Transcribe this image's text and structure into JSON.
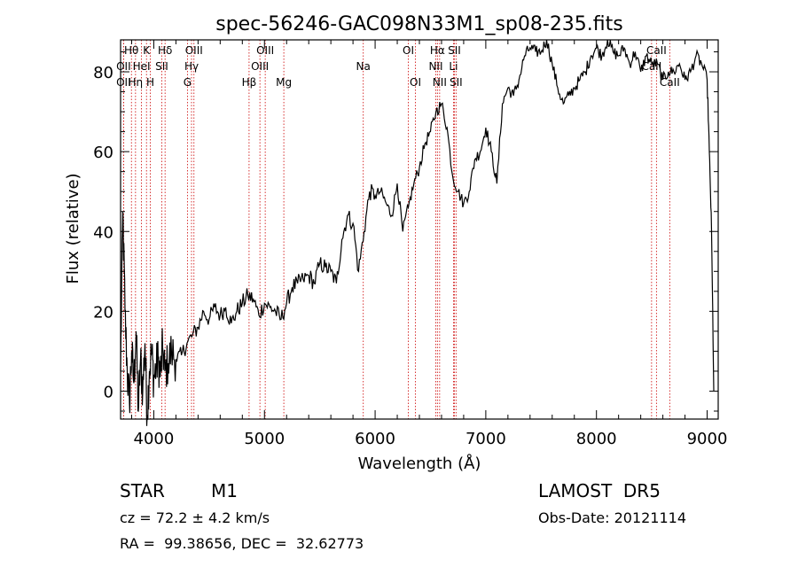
{
  "chart_data": {
    "type": "line",
    "title": "spec-56246-GAC098N33M1_sp08-235.fits",
    "xlabel": "Wavelength (Å)",
    "ylabel": "Flux (relative)",
    "xlim": [
      3700,
      9100
    ],
    "ylim": [
      -7,
      88
    ],
    "xticks": [
      4000,
      5000,
      6000,
      7000,
      8000,
      9000
    ],
    "yticks": [
      0,
      20,
      40,
      60,
      80
    ],
    "grid": false,
    "line_color": "#000000",
    "marker_line_color": "#cc0000",
    "spectral_lines": [
      {
        "label": "Hθ",
        "x": 3798,
        "row": 0
      },
      {
        "label": "OII",
        "x": 3727,
        "row": 1
      },
      {
        "label": "OII",
        "x": 3727,
        "row": 2
      },
      {
        "label": "Hη",
        "x": 3835,
        "row": 2
      },
      {
        "label": "K",
        "x": 3934,
        "row": 0
      },
      {
        "label": "HeI",
        "x": 3889,
        "row": 1
      },
      {
        "label": "H",
        "x": 3969,
        "row": 2
      },
      {
        "label": "Hδ",
        "x": 4102,
        "row": 0
      },
      {
        "label": "SII",
        "x": 4072,
        "row": 1
      },
      {
        "label": "OIII",
        "x": 4363,
        "row": 0
      },
      {
        "label": "Hγ",
        "x": 4341,
        "row": 1
      },
      {
        "label": "G",
        "x": 4304,
        "row": 2
      },
      {
        "label": "OIII",
        "x": 5007,
        "row": 0
      },
      {
        "label": "OIII",
        "x": 4959,
        "row": 1
      },
      {
        "label": "Hβ",
        "x": 4861,
        "row": 2
      },
      {
        "label": "Mg",
        "x": 5175,
        "row": 2
      },
      {
        "label": "Na",
        "x": 5893,
        "row": 1
      },
      {
        "label": "OI",
        "x": 6300,
        "row": 0
      },
      {
        "label": "OI",
        "x": 6364,
        "row": 2
      },
      {
        "label": "Hα",
        "x": 6563,
        "row": 0
      },
      {
        "label": "SII",
        "x": 6716,
        "row": 0
      },
      {
        "label": "NII",
        "x": 6548,
        "row": 1
      },
      {
        "label": "Li",
        "x": 6708,
        "row": 1
      },
      {
        "label": "NII",
        "x": 6583,
        "row": 2
      },
      {
        "label": "SII",
        "x": 6731,
        "row": 2
      },
      {
        "label": "CaII",
        "x": 8542,
        "row": 0
      },
      {
        "label": "CaII",
        "x": 8498,
        "row": 1
      },
      {
        "label": "CaII",
        "x": 8662,
        "row": 2
      }
    ],
    "series": [
      {
        "x": [
          3700,
          3720,
          3740,
          3760,
          3780,
          3800,
          3820,
          3840,
          3860,
          3880,
          3900,
          3920,
          3940,
          3960,
          3980,
          4000,
          4020,
          4040,
          4060,
          4080,
          4100,
          4130,
          4160,
          4200,
          4250,
          4300,
          4350,
          4400,
          4450,
          4500,
          4550,
          4600,
          4650,
          4700,
          4750,
          4800,
          4850,
          4900,
          4950,
          5000,
          5050,
          5100,
          5150,
          5200,
          5250,
          5300,
          5350,
          5400,
          5450,
          5500,
          5550,
          5600,
          5650,
          5700,
          5750,
          5800,
          5850,
          5900,
          5950,
          6000,
          6050,
          6100,
          6150,
          6200,
          6250,
          6300,
          6350,
          6400,
          6450,
          6500,
          6550,
          6600,
          6650,
          6700,
          6750,
          6800,
          6850,
          6900,
          6950,
          7000,
          7050,
          7100,
          7150,
          7200,
          7250,
          7300,
          7350,
          7400,
          7450,
          7500,
          7550,
          7600,
          7650,
          7700,
          7750,
          7800,
          7850,
          7900,
          7950,
          8000,
          8050,
          8100,
          8150,
          8200,
          8250,
          8300,
          8350,
          8400,
          8450,
          8500,
          8550,
          8600,
          8650,
          8700,
          8750,
          8800,
          8850,
          8900,
          8950,
          9000,
          9020,
          9040,
          9060
        ],
        "y": [
          5,
          45,
          20,
          5,
          -3,
          10,
          2,
          15,
          -5,
          8,
          0,
          12,
          -6,
          5,
          10,
          3,
          6,
          8,
          4,
          11,
          5,
          7,
          10,
          8,
          9,
          12,
          14,
          16,
          20,
          18,
          21,
          19,
          21,
          17,
          20,
          22,
          24,
          23,
          19,
          22,
          21,
          20,
          18,
          22,
          26,
          27,
          28,
          29,
          27,
          32,
          31,
          30,
          27,
          38,
          44,
          42,
          30,
          40,
          50,
          49,
          50,
          47,
          44,
          52,
          40,
          46,
          52,
          56,
          62,
          65,
          70,
          72,
          66,
          54,
          50,
          47,
          50,
          58,
          60,
          66,
          60,
          52,
          72,
          76,
          74,
          78,
          84,
          86,
          85,
          85,
          88,
          82,
          76,
          72,
          74,
          76,
          78,
          80,
          84,
          86,
          84,
          88,
          85,
          84,
          86,
          82,
          85,
          80,
          84,
          82,
          82,
          78,
          80,
          80,
          82,
          78,
          80,
          84,
          82,
          78,
          60,
          40,
          0
        ]
      }
    ]
  },
  "info": {
    "object_type": "STAR",
    "subclass": "M1",
    "survey": "LAMOST  DR5",
    "cz": "cz = 72.2 ± 4.2 km/s",
    "obs_date": "Obs-Date: 20121114",
    "coords": "RA =  99.38656, DEC =  32.62773"
  }
}
